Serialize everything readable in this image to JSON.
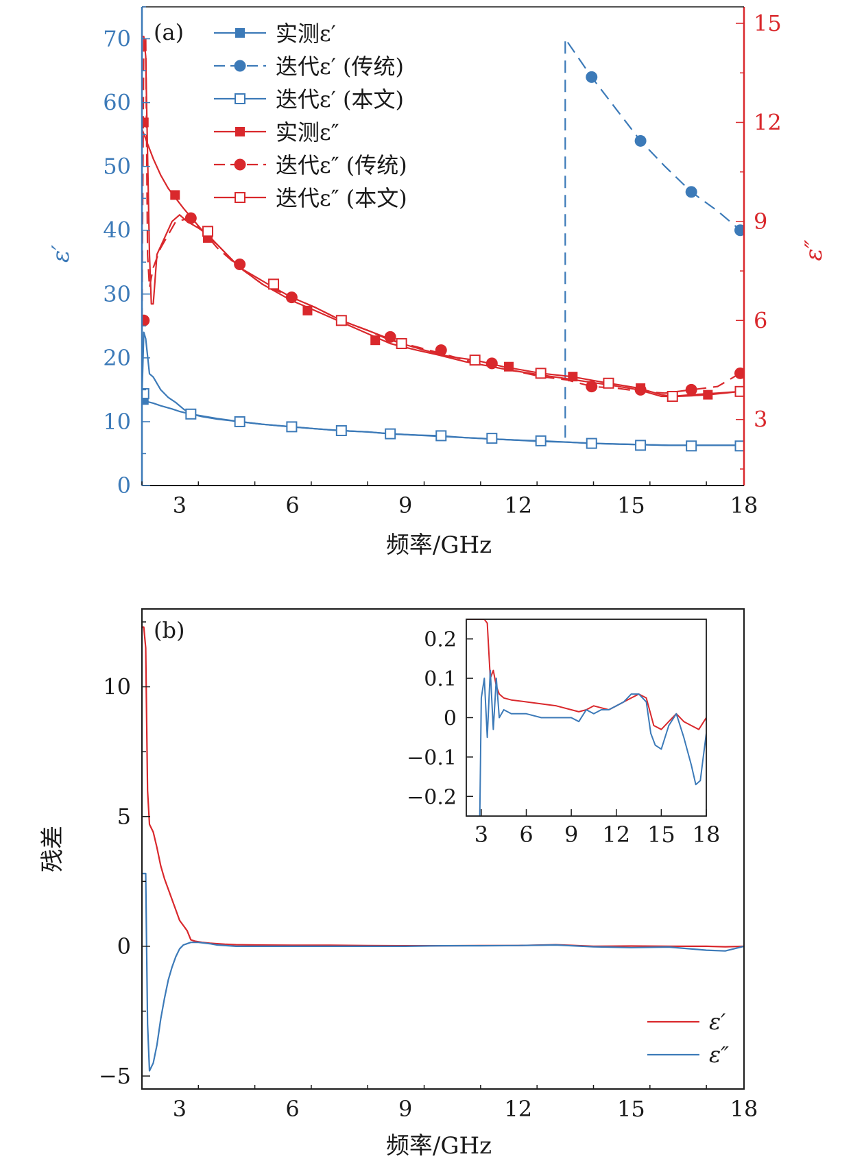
{
  "colors": {
    "blue": "#3c7ab8",
    "red": "#d9282c",
    "axis_black": "#1a1a1a"
  },
  "chart_data": [
    {
      "type": "line",
      "panel_label": "(a)",
      "xlabel": "频率/GHz",
      "ylabel_left": "ε′",
      "ylabel_right": "ε″",
      "xlim": [
        2,
        18
      ],
      "ylim_left": [
        0,
        75
      ],
      "ylim_right": [
        1,
        15.5
      ],
      "xticks": [
        3,
        6,
        9,
        12,
        15,
        18
      ],
      "yticks_left": [
        0,
        10,
        20,
        30,
        40,
        50,
        60,
        70
      ],
      "yticks_right": [
        3,
        6,
        9,
        12,
        15
      ],
      "legend_position": "top-left",
      "series": [
        {
          "name": "实测ε′",
          "axis": "left",
          "color": "#3c7ab8",
          "dash": "solid",
          "marker": "square-filled",
          "x": [
            2.0,
            2.1,
            2.3,
            2.5,
            2.8,
            3.0,
            3.3,
            3.6,
            4.0,
            4.6,
            5.2,
            5.98,
            6.6,
            7.3,
            8.0,
            8.6,
            9.3,
            9.9,
            10.6,
            11.3,
            12.0,
            12.6,
            13.3,
            14.0,
            14.6,
            15.3,
            16.0,
            16.6,
            17.3,
            17.9
          ],
          "y": [
            13.4,
            13.2,
            12.9,
            12.5,
            12.0,
            11.6,
            11.2,
            10.9,
            10.5,
            10.0,
            9.6,
            9.2,
            8.9,
            8.6,
            8.4,
            8.1,
            7.9,
            7.7,
            7.5,
            7.3,
            7.1,
            6.9,
            6.8,
            6.6,
            6.5,
            6.4,
            6.3,
            6.3,
            6.3,
            6.3
          ],
          "marker_x": [
            2.05
          ],
          "marker_y": [
            13.4
          ]
        },
        {
          "name": "迭代ε′ (传统)",
          "axis": "left",
          "color": "#3c7ab8",
          "dash": "dashed",
          "marker": "circle-filled",
          "x": [
            13.25,
            13.25,
            13.95,
            14.6,
            15.25,
            15.9,
            16.6,
            17.3,
            17.9
          ],
          "y": [
            7.5,
            70.0,
            64.0,
            59.0,
            54.0,
            50.0,
            46.0,
            43.0,
            40.0
          ],
          "marker_x": [
            13.95,
            15.25,
            16.6,
            17.9
          ],
          "marker_y": [
            64.0,
            54.0,
            46.0,
            40.0
          ]
        },
        {
          "name": "迭代ε′ (本文)",
          "axis": "left",
          "color": "#3c7ab8",
          "dash": "solid",
          "marker": "square-open",
          "x": [
            2.0,
            2.05,
            2.1,
            2.2,
            2.3,
            2.4,
            2.5,
            2.7,
            2.9,
            3.1,
            3.3,
            3.6,
            4.0,
            4.6,
            5.2,
            5.98,
            6.6,
            7.3,
            8.0,
            8.6,
            9.3,
            9.9,
            10.6,
            11.3,
            12.0,
            12.6,
            13.3,
            14.0,
            14.6,
            15.3,
            16.0,
            16.6,
            17.3,
            17.9
          ],
          "y": [
            14.0,
            24.0,
            23.0,
            17.5,
            17.0,
            16.0,
            15.0,
            13.8,
            13.0,
            12.0,
            11.2,
            10.8,
            10.4,
            10.0,
            9.6,
            9.2,
            8.9,
            8.6,
            8.4,
            8.1,
            7.9,
            7.8,
            7.5,
            7.3,
            7.1,
            7.0,
            6.8,
            6.6,
            6.5,
            6.4,
            6.3,
            6.3,
            6.3,
            6.3
          ],
          "marker_x": [
            2.05,
            3.3,
            4.6,
            5.98,
            7.3,
            8.6,
            9.95,
            11.3,
            12.6,
            13.95,
            15.25,
            16.6,
            17.9
          ],
          "marker_y": [
            14.4,
            11.2,
            10.0,
            9.2,
            8.6,
            8.1,
            7.8,
            7.4,
            7.0,
            6.6,
            6.3,
            6.2,
            6.2
          ]
        },
        {
          "name": "实测ε″",
          "axis": "right",
          "color": "#d9282c",
          "dash": "solid",
          "marker": "square-filled",
          "x": [
            2.0,
            2.1,
            2.3,
            2.5,
            2.7,
            2.9,
            3.1,
            3.4,
            3.7,
            4.0,
            4.6,
            5.2,
            5.98,
            6.4,
            7.3,
            8.2,
            8.6,
            9.3,
            9.9,
            10.6,
            11.3,
            11.75,
            12.6,
            13.5,
            14.4,
            15.2,
            15.8,
            16.2,
            16.6,
            17.04,
            17.5,
            17.9
          ],
          "y": [
            11.8,
            11.5,
            10.9,
            10.4,
            10.0,
            9.7,
            9.4,
            9.0,
            8.6,
            8.3,
            7.6,
            7.1,
            6.6,
            6.4,
            5.95,
            5.5,
            5.3,
            5.1,
            4.95,
            4.75,
            4.6,
            4.5,
            4.35,
            4.2,
            4.05,
            3.9,
            3.7,
            3.7,
            3.72,
            3.75,
            3.8,
            3.85
          ],
          "marker_x": [
            2.05,
            2.88,
            3.75,
            6.4,
            8.2,
            11.75,
            13.45,
            15.25,
            17.04
          ],
          "marker_y": [
            12.0,
            9.8,
            8.5,
            6.3,
            5.4,
            4.6,
            4.3,
            3.95,
            3.75
          ]
        },
        {
          "name": "迭代ε″ (传统)",
          "axis": "right",
          "color": "#d9282c",
          "dash": "dashed",
          "marker": "circle-filled",
          "x": [
            2.0,
            2.05,
            2.1,
            2.15,
            2.2,
            2.3,
            2.5,
            2.7,
            2.9,
            3.3,
            3.7,
            4.0,
            4.6,
            5.2,
            5.98,
            6.6,
            7.3,
            8.0,
            8.6,
            9.3,
            9.95,
            10.6,
            11.3,
            12.0,
            12.6,
            13.3,
            13.95,
            14.6,
            15.25,
            15.9,
            16.6,
            17.3,
            17.9
          ],
          "y": [
            6.0,
            14.6,
            14.6,
            8.0,
            7.0,
            7.6,
            8.2,
            8.6,
            9.0,
            9.1,
            8.6,
            8.2,
            7.6,
            7.1,
            6.7,
            6.4,
            6.0,
            5.7,
            5.4,
            5.2,
            5.0,
            4.8,
            4.6,
            4.45,
            4.3,
            4.2,
            4.0,
            3.95,
            3.85,
            3.8,
            3.9,
            4.0,
            4.4
          ],
          "marker_x": [
            2.05,
            3.3,
            4.6,
            5.98,
            8.6,
            9.95,
            11.3,
            13.95,
            15.25,
            16.6,
            17.9
          ],
          "marker_y": [
            6.0,
            9.1,
            7.7,
            6.7,
            5.5,
            5.1,
            4.7,
            4.0,
            3.9,
            3.9,
            4.4
          ]
        },
        {
          "name": "迭代ε″ (本文)",
          "axis": "right",
          "color": "#d9282c",
          "dash": "solid",
          "marker": "square-open",
          "x": [
            2.0,
            2.05,
            2.1,
            2.2,
            2.25,
            2.3,
            2.4,
            2.6,
            2.8,
            3.0,
            3.2,
            3.5,
            3.75,
            4.0,
            4.6,
            5.5,
            5.98,
            6.6,
            7.3,
            8.0,
            8.9,
            9.5,
            10.2,
            10.85,
            11.6,
            12.6,
            13.4,
            14.4,
            15.2,
            15.8,
            16.1,
            16.6,
            17.3,
            17.9
          ],
          "y": [
            14.6,
            14.6,
            14.0,
            8.0,
            6.5,
            6.5,
            8.0,
            8.5,
            9.0,
            9.2,
            9.0,
            8.8,
            8.6,
            8.3,
            7.6,
            7.0,
            6.7,
            6.4,
            6.0,
            5.7,
            5.3,
            5.1,
            4.9,
            4.8,
            4.6,
            4.4,
            4.3,
            4.1,
            3.95,
            3.75,
            3.7,
            3.75,
            3.8,
            3.85
          ],
          "marker_x": [
            3.75,
            5.5,
            7.3,
            8.9,
            10.85,
            12.6,
            14.4,
            16.1,
            17.9
          ],
          "marker_y": [
            8.7,
            7.1,
            6.0,
            5.3,
            4.8,
            4.4,
            4.1,
            3.7,
            3.85
          ]
        }
      ]
    },
    {
      "type": "line",
      "panel_label": "(b)",
      "xlabel": "频率/GHz",
      "ylabel": "残差",
      "xlim": [
        2,
        18
      ],
      "ylim": [
        -5.5,
        13.0
      ],
      "xticks": [
        3,
        6,
        9,
        12,
        15,
        18
      ],
      "yticks": [
        -5,
        0,
        5,
        10
      ],
      "legend_position": "bottom-right",
      "series": [
        {
          "name": "ε′",
          "color": "#d9282c",
          "x": [
            2.0,
            2.05,
            2.1,
            2.15,
            2.2,
            2.3,
            2.4,
            2.5,
            2.6,
            2.7,
            2.8,
            2.9,
            3.0,
            3.1,
            3.2,
            3.3,
            3.4,
            3.6,
            3.8,
            4.0,
            4.2,
            4.5,
            5.0,
            6.0,
            7.0,
            8.0,
            9.0,
            10.0,
            11.0,
            12.0,
            13.0,
            14.0,
            15.0,
            16.0,
            17.0,
            17.5,
            18.0
          ],
          "y": [
            12.3,
            12.3,
            11.5,
            6.0,
            4.7,
            4.4,
            3.8,
            3.1,
            2.6,
            2.2,
            1.8,
            1.4,
            1.0,
            0.8,
            0.6,
            0.25,
            0.2,
            0.15,
            0.12,
            0.1,
            0.08,
            0.06,
            0.05,
            0.04,
            0.04,
            0.03,
            0.02,
            0.02,
            0.03,
            0.03,
            0.06,
            0.0,
            0.01,
            0.0,
            0.0,
            -0.02,
            0.0
          ]
        },
        {
          "name": "ε″",
          "color": "#3c7ab8",
          "x": [
            2.0,
            2.05,
            2.1,
            2.15,
            2.2,
            2.3,
            2.4,
            2.5,
            2.6,
            2.7,
            2.8,
            2.9,
            3.0,
            3.1,
            3.2,
            3.3,
            3.5,
            3.8,
            4.0,
            4.5,
            5.0,
            6.0,
            7.0,
            8.0,
            9.0,
            10.0,
            11.0,
            12.0,
            13.0,
            14.0,
            15.0,
            16.0,
            17.0,
            17.5,
            18.0
          ],
          "y": [
            2.8,
            2.8,
            2.8,
            -3.0,
            -4.8,
            -4.5,
            -3.8,
            -2.8,
            -2.0,
            -1.3,
            -0.8,
            -0.4,
            -0.1,
            0.05,
            0.1,
            0.15,
            0.15,
            0.1,
            0.05,
            0.0,
            0.0,
            0.0,
            0.0,
            0.0,
            0.0,
            0.02,
            0.02,
            0.03,
            0.05,
            -0.02,
            -0.05,
            -0.03,
            -0.15,
            -0.18,
            0.0
          ]
        }
      ],
      "inset": {
        "xlim": [
          2,
          18
        ],
        "ylim": [
          -0.25,
          0.25
        ],
        "xticks": [
          3,
          6,
          9,
          12,
          15,
          18
        ],
        "yticks": [
          -0.2,
          -0.1,
          0,
          0.1,
          0.2
        ],
        "yticklabels": [
          "−0.2",
          "−0.1",
          "0",
          "0.1",
          "0.2"
        ],
        "series": [
          {
            "name": "ε′",
            "color": "#d9282c",
            "x": [
              2.0,
              2.2,
              2.4,
              2.6,
              2.8,
              3.0,
              3.2,
              3.4,
              3.6,
              3.8,
              4.0,
              4.2,
              4.5,
              5.0,
              6.0,
              7.0,
              8.0,
              9.0,
              9.5,
              10.0,
              10.5,
              11.0,
              11.5,
              12.0,
              12.5,
              13.0,
              13.5,
              14.0,
              14.5,
              15.0,
              15.5,
              16.0,
              16.5,
              17.0,
              17.5,
              18.0
            ],
            "y": [
              0.25,
              0.25,
              0.25,
              0.25,
              0.25,
              0.25,
              0.25,
              0.24,
              0.1,
              0.12,
              0.08,
              0.06,
              0.05,
              0.045,
              0.04,
              0.035,
              0.03,
              0.02,
              0.015,
              0.02,
              0.03,
              0.025,
              0.02,
              0.03,
              0.04,
              0.05,
              0.06,
              0.05,
              -0.02,
              -0.03,
              -0.01,
              0.01,
              -0.01,
              -0.02,
              -0.03,
              0.0
            ]
          },
          {
            "name": "ε″",
            "color": "#3c7ab8",
            "x": [
              2.0,
              2.3,
              2.6,
              2.9,
              3.0,
              3.2,
              3.4,
              3.6,
              3.8,
              4.0,
              4.2,
              4.5,
              5.0,
              6.0,
              7.0,
              8.0,
              9.0,
              9.5,
              10.0,
              10.5,
              11.0,
              11.5,
              12.0,
              12.5,
              13.0,
              13.5,
              14.0,
              14.3,
              14.6,
              15.0,
              15.5,
              16.0,
              16.5,
              17.0,
              17.3,
              17.6,
              17.8,
              18.0
            ],
            "y": [
              -0.25,
              -0.25,
              -0.25,
              -0.25,
              0.05,
              0.1,
              -0.05,
              0.12,
              -0.03,
              0.1,
              0.0,
              0.02,
              0.01,
              0.01,
              0.0,
              0.0,
              0.0,
              -0.01,
              0.02,
              0.01,
              0.02,
              0.02,
              0.03,
              0.04,
              0.06,
              0.06,
              0.04,
              -0.04,
              -0.07,
              -0.08,
              -0.02,
              0.01,
              -0.05,
              -0.12,
              -0.17,
              -0.16,
              -0.1,
              -0.04
            ]
          }
        ]
      }
    }
  ]
}
